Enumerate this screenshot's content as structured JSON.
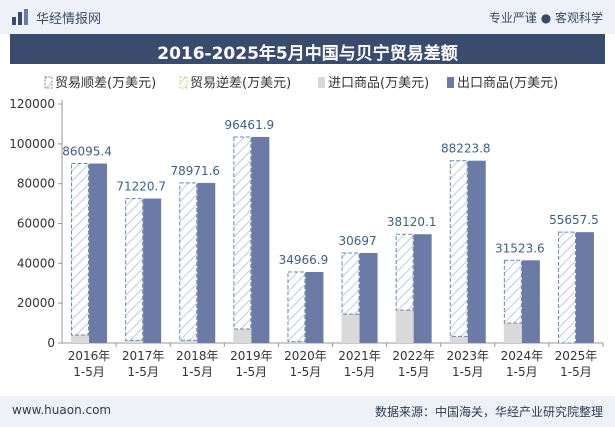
{
  "header": {
    "brand_name": "华经情报网",
    "slogan": "专业严谨 ● 客观科学",
    "title": "2016-2025年5月中国与贝宁贸易差额"
  },
  "footer": {
    "website": "www.huaon.com",
    "source": "数据来源：中国海关，华经产业研究院整理"
  },
  "colors": {
    "topbar_bg": "#eef2f8",
    "title_bg": "#3a4c6d",
    "export": "#6b7ba6",
    "import": "#d9d9d9",
    "surplus_stroke": "#6a88ad",
    "label": "#3d5f8c"
  },
  "chart_data": {
    "type": "bar",
    "categories": [
      "2016年\n1-5月",
      "2017年\n1-5月",
      "2018年\n1-5月",
      "2019年\n1-5月",
      "2020年\n1-5月",
      "2021年\n1-5月",
      "2022年\n1-5月",
      "2023年\n1-5月",
      "2024年\n1-5月",
      "2025年\n1-5月"
    ],
    "series": [
      {
        "name": "贸易顺差(万美元)",
        "style": "diagonal-hatch",
        "values": [
          86095.4,
          71220.7,
          78971.6,
          96461.9,
          34966.9,
          30697,
          38120.1,
          88223.8,
          31523.6,
          55657.5
        ]
      },
      {
        "name": "贸易逆差(万美元)",
        "style": "diagonal-hatch-yellow",
        "values": [
          0,
          0,
          0,
          0,
          0,
          0,
          0,
          0,
          0,
          0
        ]
      },
      {
        "name": "进口商品(万美元)",
        "values": [
          4000,
          1300,
          1400,
          7000,
          700,
          14500,
          16500,
          3300,
          10000,
          0
        ]
      },
      {
        "name": "出口商品(万美元)",
        "values": [
          90095.4,
          72520.7,
          80371.6,
          103461.9,
          35666.9,
          45197,
          54620.1,
          91523.8,
          41523.6,
          55657.5
        ]
      }
    ],
    "data_labels": [
      "86095.4",
      "71220.7",
      "78971.6",
      "96461.9",
      "34966.9",
      "30697",
      "38120.1",
      "88223.8",
      "31523.6",
      "55657.5"
    ],
    "y_ticks": [
      "0",
      "20000",
      "40000",
      "60000",
      "80000",
      "100000",
      "120000"
    ],
    "ylim": [
      0,
      120000
    ],
    "legend_position": "top",
    "grid": false
  }
}
